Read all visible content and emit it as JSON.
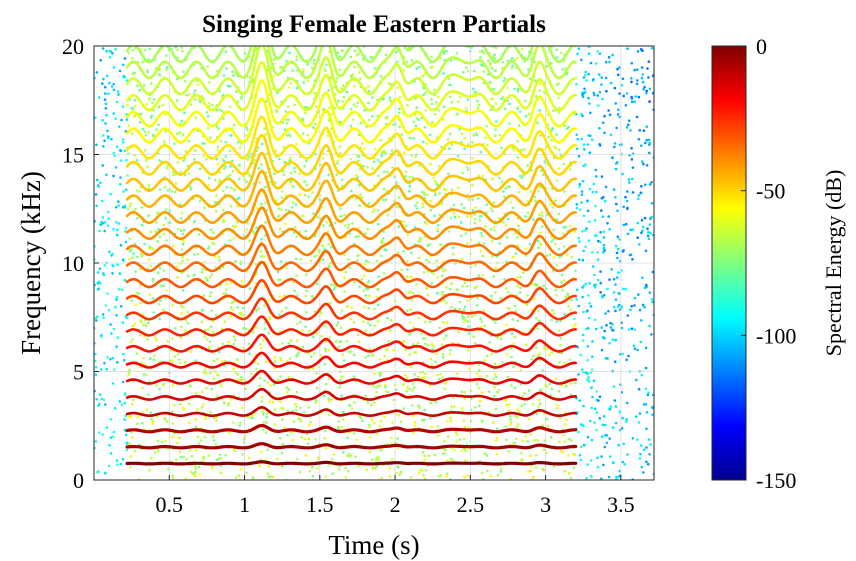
{
  "chart_data": {
    "type": "heatmap",
    "subtype": "spectral-partials-scatter",
    "title": "Singing Female Eastern Partials",
    "xlabel": "Time (s)",
    "ylabel": "Frequency (kHz)",
    "xlim": [
      0,
      3.72
    ],
    "ylim": [
      0,
      20
    ],
    "xticks": [
      0.5,
      1,
      1.5,
      2,
      2.5,
      3,
      3.5
    ],
    "xtick_labels": [
      "0.5",
      "1",
      "1.5",
      "2",
      "2.5",
      "3",
      "3.5"
    ],
    "yticks": [
      0,
      5,
      10,
      15,
      20
    ],
    "ytick_labels": [
      "0",
      "5",
      "10",
      "15",
      "20"
    ],
    "grid": true,
    "colormap": "jet",
    "colorbar": {
      "label": "Spectral Energy (dB)",
      "range": [
        -150,
        0
      ],
      "ticks": [
        0,
        -50,
        -100,
        -150
      ],
      "tick_labels": [
        "0",
        "-50",
        "-100",
        "-150"
      ]
    },
    "partials": {
      "voiced_start_s": 0.22,
      "voiced_end_s": 3.2,
      "fundamental_khz": 0.7,
      "harmonic_count": 26,
      "level_at_fundamental_db": 0,
      "level_at_20khz_db": -70,
      "noise_floor_db": -100
    }
  }
}
